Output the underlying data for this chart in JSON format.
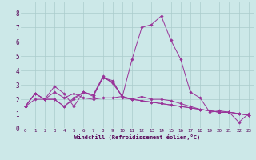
{
  "xlabel": "Windchill (Refroidissement éolien,°C)",
  "bg_color": "#cce8e8",
  "line_color": "#993399",
  "xlim": [
    -0.5,
    23.5
  ],
  "ylim": [
    0,
    8.8
  ],
  "xticks": [
    0,
    1,
    2,
    3,
    4,
    5,
    6,
    7,
    8,
    9,
    10,
    11,
    12,
    13,
    14,
    15,
    16,
    17,
    18,
    19,
    20,
    21,
    22,
    23
  ],
  "yticks": [
    0,
    1,
    2,
    3,
    4,
    5,
    6,
    7,
    8
  ],
  "series": [
    [
      1.5,
      2.4,
      2.0,
      2.9,
      2.4,
      1.5,
      2.5,
      2.2,
      3.5,
      3.3,
      2.1,
      2.0,
      2.2,
      2.0,
      2.0,
      1.9,
      1.7,
      1.5,
      1.3,
      1.2,
      1.1,
      1.1,
      1.0,
      0.9
    ],
    [
      1.5,
      2.0,
      2.0,
      2.5,
      2.1,
      2.4,
      2.1,
      2.0,
      2.1,
      2.1,
      2.2,
      2.0,
      1.9,
      1.8,
      1.7,
      1.6,
      1.5,
      1.4,
      1.3,
      1.2,
      1.1,
      1.1,
      0.4,
      1.0
    ],
    [
      1.5,
      2.4,
      2.0,
      2.0,
      1.5,
      2.1,
      2.5,
      2.3,
      3.6,
      3.1,
      2.2,
      4.8,
      7.0,
      7.2,
      7.8,
      6.1,
      4.8,
      2.5,
      2.1,
      1.1,
      1.2,
      1.1,
      1.0,
      0.9
    ],
    [
      1.5,
      2.4,
      2.0,
      2.0,
      1.5,
      2.0,
      2.5,
      2.3,
      3.5,
      3.2,
      2.2,
      2.0,
      1.9,
      1.8,
      1.7,
      1.6,
      1.5,
      1.4,
      1.3,
      1.2,
      1.1,
      1.1,
      1.0,
      0.9
    ]
  ],
  "xlabel_fontsize": 5.0,
  "tick_fontsize_x": 4.2,
  "tick_fontsize_y": 5.5,
  "grid_color": "#aacccc",
  "tick_color": "#550055"
}
